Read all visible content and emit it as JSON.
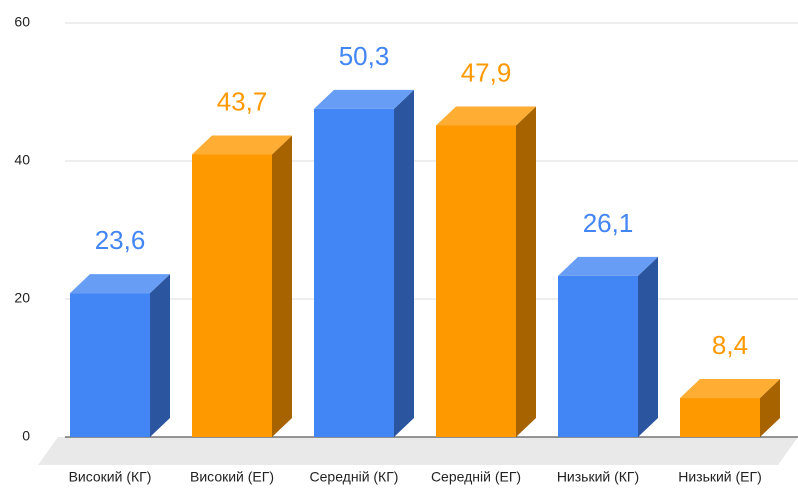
{
  "chart_data": {
    "type": "bar3d",
    "categories": [
      "Високий (КГ)",
      "Високий (ЕГ)",
      "Середній (КГ)",
      "Середній (ЕГ)",
      "Низький (КГ)",
      "Низький (ЕГ)"
    ],
    "values": [
      23.6,
      43.7,
      50.3,
      47.9,
      26.1,
      8.4
    ],
    "value_labels": [
      "23,6",
      "43,7",
      "50,3",
      "47,9",
      "26,1",
      "8,4"
    ],
    "colors": [
      "#4285f4",
      "#ff9900",
      "#4285f4",
      "#ff9900",
      "#4285f4",
      "#ff9900"
    ],
    "ylim": [
      0,
      60
    ],
    "yticks": [
      0,
      20,
      40,
      60
    ],
    "grid": true
  }
}
